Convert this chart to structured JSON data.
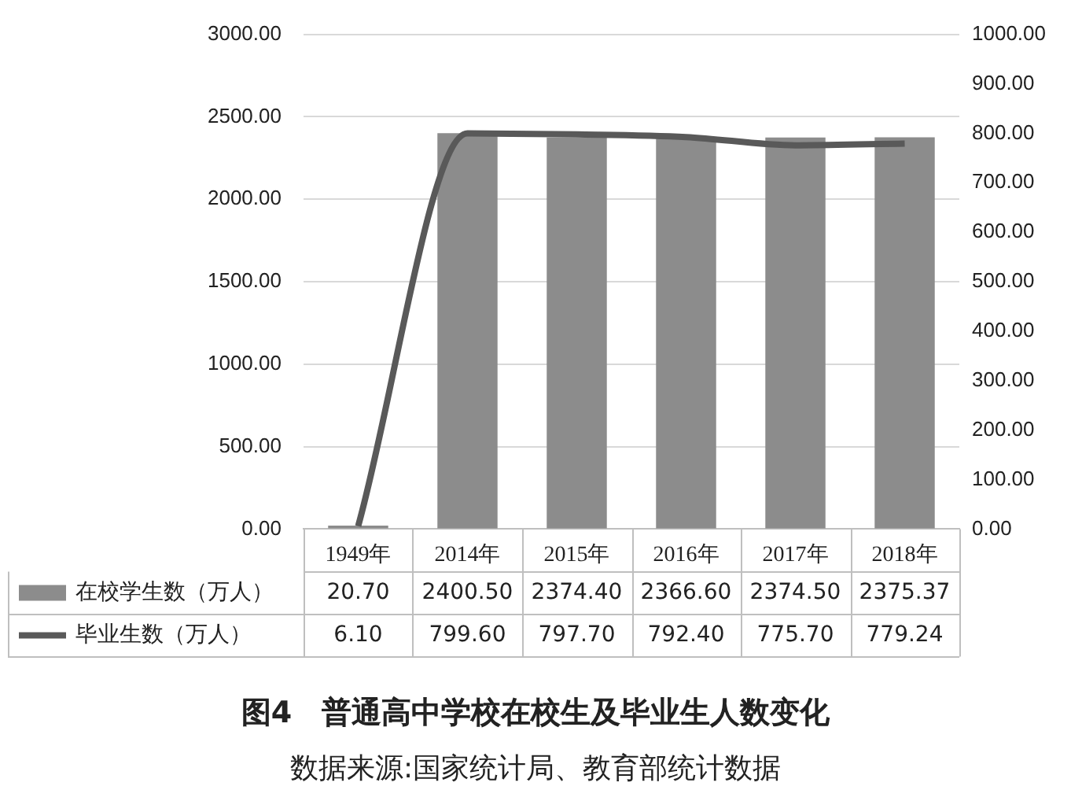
{
  "chart_data": {
    "type": "bar",
    "title": "图4　普通高中学校在校生及毕业生人数变化",
    "annotations": [
      "数据来源:国家统计局、教育部统计数据"
    ],
    "categories": [
      "1949年",
      "2014年",
      "2015年",
      "2016年",
      "2017年",
      "2018年"
    ],
    "series": [
      {
        "name": "在校学生数（万人）",
        "color": "#8c8c8c",
        "values": [
          20.7,
          2400.5,
          2374.4,
          2366.6,
          2374.5,
          2375.37
        ],
        "value_labels": [
          "20.70",
          "2400.50",
          "2374.40",
          "2366.60",
          "2374.50",
          "2375.37"
        ]
      },
      {
        "name": "毕业生数（万人）",
        "type": "line",
        "axis": "y2",
        "color": "#595959",
        "values": [
          6.1,
          799.6,
          797.7,
          792.4,
          775.7,
          779.24
        ],
        "value_labels": [
          "6.10",
          "799.60",
          "797.70",
          "792.40",
          "775.70",
          "779.24"
        ]
      }
    ],
    "ylim": [
      0,
      3000
    ],
    "yticks": [
      {
        "value": 0,
        "label": "0.00"
      },
      {
        "value": 500,
        "label": "500.00"
      },
      {
        "value": 1000,
        "label": "1000.00"
      },
      {
        "value": 1500,
        "label": "1500.00"
      },
      {
        "value": 2000,
        "label": "2000.00"
      },
      {
        "value": 2500,
        "label": "2500.00"
      },
      {
        "value": 3000,
        "label": "3000.00"
      }
    ],
    "y2lim": [
      0,
      1000
    ],
    "y2ticks": [
      {
        "value": 0,
        "label": "0.00"
      },
      {
        "value": 100,
        "label": "100.00"
      },
      {
        "value": 200,
        "label": "200.00"
      },
      {
        "value": 300,
        "label": "300.00"
      },
      {
        "value": 400,
        "label": "400.00"
      },
      {
        "value": 500,
        "label": "500.00"
      },
      {
        "value": 600,
        "label": "600.00"
      },
      {
        "value": 700,
        "label": "700.00"
      },
      {
        "value": 800,
        "label": "800.00"
      },
      {
        "value": 900,
        "label": "900.00"
      },
      {
        "value": 1000,
        "label": "1000.00"
      }
    ],
    "grid": "y",
    "legend": "bottom"
  }
}
